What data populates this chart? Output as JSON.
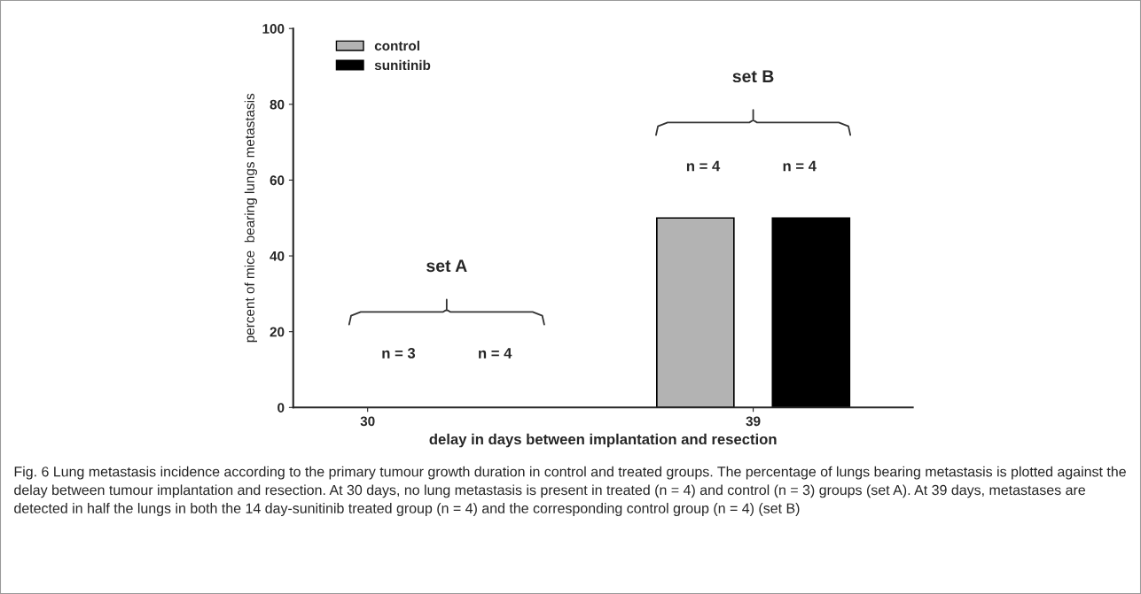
{
  "chart_data": {
    "type": "bar",
    "categories": [
      "30",
      "39"
    ],
    "series": [
      {
        "name": "control",
        "color": "#b3b3b3",
        "values": [
          0,
          50
        ]
      },
      {
        "name": "sunitinib",
        "color": "#000000",
        "values": [
          0,
          50
        ]
      }
    ],
    "xlabel": "delay in days between implantation and resection",
    "ylabel": "percent of mice  bearing lungs metastasis",
    "ylim": [
      0,
      100
    ],
    "yticks": [
      0,
      20,
      40,
      60,
      80,
      100
    ],
    "legend": "top left",
    "grid": false,
    "annotations": [
      "set A",
      "n = 3",
      "n = 4",
      "set B",
      "n = 4",
      "n = 4",
      "Fig. 6 Lung metastasis incidence according to the primary tumour growth duration in control and treated groups. The percentage of lungs bearing metastasis is plotted against the delay between tumour implantation and resection. At 30 days, no lung metastasis is present in treated (n = 4) and control (n = 3) groups (set A). At 39 days, metastases are detected in half the lungs in both the 14 day-sunitinib treated group (n = 4) and the corresponding control group (n = 4) (set B)"
    ]
  }
}
